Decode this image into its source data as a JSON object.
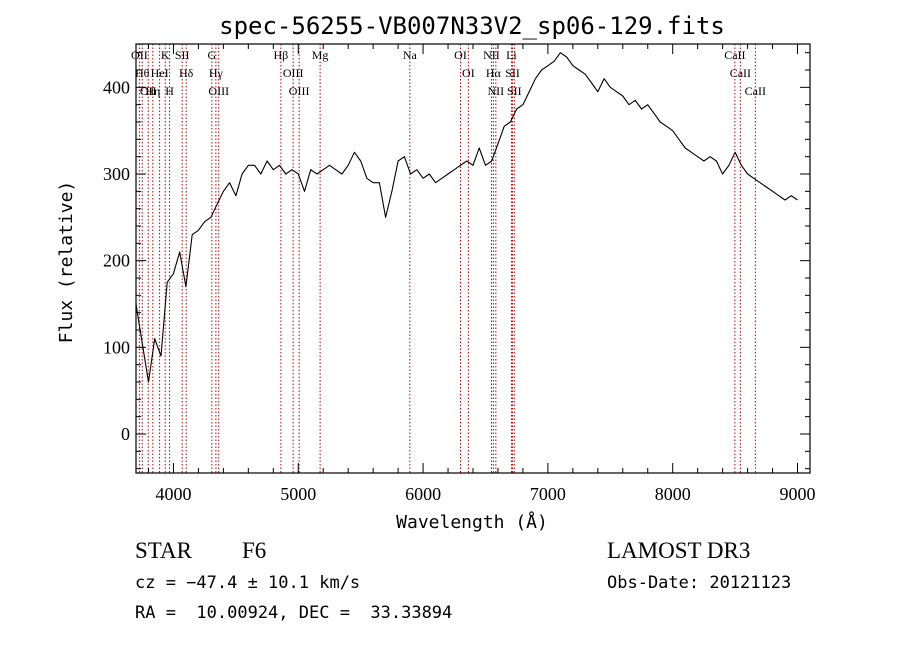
{
  "chart_data": {
    "type": "line",
    "title": "spec-56255-VB007N33V2_sp06-129.fits",
    "xlabel": "Wavelength (Å)",
    "ylabel": "Flux (relative)",
    "xlim": [
      3700,
      9100
    ],
    "ylim": [
      -45,
      450
    ],
    "xticks": [
      4000,
      5000,
      6000,
      7000,
      8000,
      9000
    ],
    "yticks": [
      0,
      100,
      200,
      300,
      400
    ],
    "series": [
      {
        "name": "flux",
        "x": [
          3700,
          3750,
          3800,
          3850,
          3900,
          3950,
          4000,
          4050,
          4100,
          4150,
          4200,
          4250,
          4300,
          4350,
          4400,
          4450,
          4500,
          4550,
          4600,
          4650,
          4700,
          4750,
          4800,
          4850,
          4900,
          4950,
          5000,
          5050,
          5100,
          5150,
          5200,
          5250,
          5300,
          5350,
          5400,
          5450,
          5500,
          5550,
          5600,
          5650,
          5700,
          5750,
          5800,
          5850,
          5900,
          5950,
          6000,
          6050,
          6100,
          6150,
          6200,
          6250,
          6300,
          6350,
          6400,
          6450,
          6500,
          6550,
          6600,
          6650,
          6700,
          6750,
          6800,
          6850,
          6900,
          6950,
          7000,
          7050,
          7100,
          7150,
          7200,
          7250,
          7300,
          7350,
          7400,
          7450,
          7500,
          7550,
          7600,
          7650,
          7700,
          7750,
          7800,
          7850,
          7900,
          7950,
          8000,
          8050,
          8100,
          8150,
          8200,
          8250,
          8300,
          8350,
          8400,
          8450,
          8500,
          8550,
          8600,
          8650,
          8700,
          8750,
          8800,
          8850,
          8900,
          8950,
          9000
        ],
        "y": [
          150,
          105,
          60,
          110,
          90,
          175,
          185,
          210,
          170,
          230,
          235,
          245,
          250,
          265,
          280,
          290,
          275,
          300,
          310,
          310,
          300,
          315,
          305,
          310,
          300,
          305,
          300,
          280,
          305,
          300,
          305,
          310,
          305,
          300,
          310,
          325,
          315,
          295,
          290,
          290,
          250,
          280,
          315,
          320,
          300,
          305,
          295,
          300,
          290,
          295,
          300,
          305,
          310,
          315,
          310,
          330,
          310,
          315,
          335,
          355,
          360,
          375,
          380,
          395,
          410,
          420,
          425,
          430,
          440,
          435,
          425,
          420,
          415,
          405,
          395,
          410,
          400,
          395,
          390,
          380,
          385,
          375,
          380,
          370,
          360,
          355,
          350,
          340,
          330,
          325,
          320,
          315,
          320,
          315,
          300,
          310,
          325,
          310,
          300,
          295,
          290,
          285,
          280,
          275,
          270,
          275,
          270
        ]
      }
    ],
    "lines": [
      {
        "wave": 3727,
        "labels": [
          "OII"
        ]
      },
      {
        "wave": 3750,
        "labels": [
          "Hθ"
        ]
      },
      {
        "wave": 3798,
        "labels": [
          "OII"
        ]
      },
      {
        "wave": 3835,
        "labels": [
          "Hη"
        ]
      },
      {
        "wave": 3889,
        "labels": [
          "HeI"
        ]
      },
      {
        "wave": 3934,
        "labels": [
          "K"
        ]
      },
      {
        "wave": 3969,
        "labels": [
          "H"
        ]
      },
      {
        "wave": 4070,
        "labels": [
          "SII"
        ]
      },
      {
        "wave": 4102,
        "labels": [
          "Hδ"
        ]
      },
      {
        "wave": 4308,
        "labels": [
          "G"
        ]
      },
      {
        "wave": 4340,
        "labels": [
          "Hγ"
        ]
      },
      {
        "wave": 4363,
        "labels": [
          "OIII"
        ]
      },
      {
        "wave": 4861,
        "labels": [
          "Hβ"
        ]
      },
      {
        "wave": 4959,
        "labels": [
          "OIII"
        ]
      },
      {
        "wave": 5007,
        "labels": [
          "OIII"
        ]
      },
      {
        "wave": 5175,
        "labels": [
          "Mg"
        ]
      },
      {
        "wave": 5894,
        "labels": [
          "Na"
        ]
      },
      {
        "wave": 6300,
        "labels": [
          "OI"
        ]
      },
      {
        "wave": 6363,
        "labels": [
          "OI"
        ]
      },
      {
        "wave": 6548,
        "labels": [
          "NII"
        ]
      },
      {
        "wave": 6563,
        "labels": [
          "Hα"
        ]
      },
      {
        "wave": 6583,
        "labels": [
          "NII"
        ]
      },
      {
        "wave": 6708,
        "labels": [
          "Li"
        ]
      },
      {
        "wave": 6717,
        "labels": [
          "SII"
        ]
      },
      {
        "wave": 6731,
        "labels": [
          "SII"
        ]
      },
      {
        "wave": 8498,
        "labels": [
          "CaII"
        ]
      },
      {
        "wave": 8542,
        "labels": [
          "CaII"
        ]
      },
      {
        "wave": 8662,
        "labels": [
          "CaII"
        ]
      }
    ],
    "line_color": "#c00000",
    "curve_color": "#000000"
  },
  "info": {
    "class_label": "STAR",
    "subclass": "F6",
    "survey": "LAMOST DR3",
    "cz": "cz = −47.4 ± 10.1 km/s",
    "obs_date": "Obs-Date: 20121123",
    "coords": "RA =  10.00924, DEC =  33.33894"
  }
}
